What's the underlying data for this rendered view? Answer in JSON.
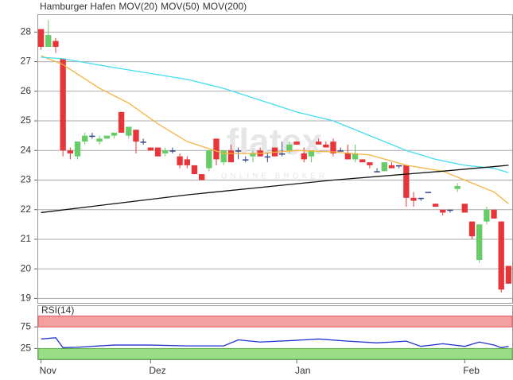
{
  "chart_data": [
    {
      "type": "candlestick",
      "title": "Hamburger Hafen",
      "title_color": "#e8353a",
      "watermark": "flatex",
      "watermark_sub": "ONLINE BROKER",
      "categories": [
        "Nov",
        null,
        null,
        null,
        null,
        null,
        null,
        null,
        null,
        null,
        null,
        null,
        null,
        null,
        null,
        "Dez",
        null,
        null,
        null,
        null,
        null,
        null,
        null,
        null,
        null,
        null,
        null,
        null,
        null,
        null,
        null,
        null,
        null,
        null,
        null,
        "Jan",
        null,
        null,
        null,
        null,
        null,
        null,
        null,
        null,
        null,
        null,
        null,
        null,
        null,
        null,
        null,
        null,
        null,
        null,
        null,
        null,
        null,
        null,
        "Feb",
        null,
        null,
        null,
        null,
        null,
        null
      ],
      "open": [
        28.1,
        27.5,
        27.7,
        27.1,
        24.0,
        23.8,
        24.3,
        24.5,
        24.3,
        24.4,
        24.5,
        25.3,
        24.5,
        24.7,
        24.3,
        24.1,
        24.1,
        23.9,
        24.0,
        23.8,
        23.7,
        23.5,
        23.2,
        23.4,
        24.4,
        23.6,
        24.0,
        24.0,
        23.7,
        23.8,
        24.0,
        23.8,
        24.1,
        23.9,
        24.0,
        24.3,
        23.9,
        23.8,
        24.3,
        24.2,
        24.3,
        24.0,
        23.9,
        23.7,
        23.7,
        23.6,
        23.3,
        23.3,
        23.5,
        23.5,
        23.5,
        22.4,
        22.4,
        22.6,
        22.2,
        22.0,
        22.0,
        22.7,
        22.2,
        21.6,
        20.3,
        21.6,
        22.0,
        21.6,
        20.1
      ],
      "high": [
        28.1,
        28.4,
        27.8,
        27.1,
        24.1,
        24.3,
        24.6,
        24.6,
        24.5,
        24.5,
        24.6,
        25.3,
        24.8,
        24.7,
        24.4,
        24.1,
        24.1,
        24.1,
        24.1,
        23.9,
        23.8,
        23.5,
        23.2,
        24.0,
        24.4,
        24.0,
        24.2,
        24.1,
        23.8,
        24.0,
        24.1,
        23.9,
        24.1,
        24.3,
        24.3,
        24.3,
        24.1,
        24.0,
        24.4,
        24.3,
        24.4,
        24.1,
        24.2,
        24.2,
        23.7,
        23.6,
        23.4,
        23.6,
        23.6,
        23.5,
        23.5,
        22.6,
        22.4,
        22.6,
        22.2,
        22.0,
        22.0,
        22.9,
        22.2,
        21.6,
        21.5,
        22.1,
        22.0,
        21.6,
        20.1
      ],
      "low": [
        27.4,
        27.5,
        27.3,
        23.8,
        23.7,
        23.7,
        24.2,
        24.4,
        24.2,
        24.4,
        24.4,
        24.6,
        24.4,
        23.9,
        24.2,
        24.0,
        23.8,
        23.8,
        23.9,
        23.4,
        23.4,
        23.2,
        23.0,
        23.3,
        23.5,
        23.5,
        23.6,
        23.7,
        23.6,
        23.6,
        23.8,
        23.6,
        23.8,
        23.8,
        23.9,
        24.2,
        23.6,
        23.6,
        24.2,
        24.1,
        23.8,
        24.0,
        23.7,
        23.6,
        23.6,
        23.4,
        23.3,
        23.3,
        23.4,
        23.4,
        22.1,
        22.1,
        22.3,
        22.6,
        22.1,
        21.8,
        21.9,
        22.6,
        21.9,
        21.0,
        20.2,
        21.5,
        21.7,
        19.2,
        19.5
      ],
      "close": [
        27.5,
        27.9,
        27.5,
        24.0,
        23.9,
        24.3,
        24.5,
        24.5,
        24.4,
        24.5,
        24.6,
        24.6,
        24.8,
        24.3,
        24.3,
        24.0,
        23.8,
        24.0,
        24.0,
        23.5,
        23.5,
        23.2,
        23.0,
        24.0,
        23.7,
        24.0,
        23.6,
        24.0,
        23.7,
        23.9,
        23.8,
        23.8,
        23.8,
        23.9,
        24.2,
        24.2,
        23.7,
        24.0,
        24.2,
        24.1,
        23.9,
        24.0,
        23.7,
        23.9,
        23.6,
        23.5,
        23.3,
        23.6,
        23.4,
        23.5,
        22.4,
        22.3,
        22.4,
        22.6,
        22.1,
        21.9,
        22.0,
        22.8,
        21.9,
        21.1,
        21.5,
        22.0,
        21.7,
        19.3,
        19.5
      ],
      "up_color": "#66cc66",
      "down_color": "#e8353a",
      "unchanged_color": "#334488",
      "series": [
        {
          "name": "MOV(20)",
          "color": "#f5b23d",
          "x": [
            0,
            3,
            8,
            12,
            16,
            20,
            25,
            30,
            35,
            40,
            45,
            50,
            55,
            58,
            62,
            64
          ],
          "values": [
            27.2,
            26.9,
            26.1,
            25.6,
            24.9,
            24.3,
            23.9,
            23.9,
            24.0,
            23.95,
            23.85,
            23.5,
            23.3,
            23.0,
            22.6,
            22.2
          ]
        },
        {
          "name": "MOV(50)",
          "color": "#44ddee",
          "x": [
            0,
            3,
            10,
            20,
            25,
            30,
            35,
            40,
            45,
            50,
            54,
            58,
            62,
            64
          ],
          "values": [
            27.15,
            27.1,
            26.8,
            26.4,
            26.1,
            25.7,
            25.3,
            25.0,
            24.5,
            24.0,
            23.7,
            23.5,
            23.4,
            23.25
          ]
        },
        {
          "name": "MOV(200)",
          "color": "#111111",
          "x": [
            0,
            20,
            40,
            55,
            64
          ],
          "values": [
            21.9,
            22.5,
            23.0,
            23.3,
            23.5
          ]
        }
      ],
      "ylim": [
        18.85,
        28.6
      ],
      "yticks": [
        19,
        20,
        21,
        22,
        23,
        24,
        25,
        26,
        27,
        28
      ],
      "grid": true
    },
    {
      "type": "line",
      "title": "RSI(14)",
      "title_color": "#2233cc",
      "bands": [
        {
          "from": 75,
          "to": 100,
          "color": "#f4a0a0",
          "edge": "#e05555"
        },
        {
          "from": 0,
          "to": 25,
          "color": "#99dd88",
          "edge": "#55aa44"
        }
      ],
      "series": [
        {
          "name": "RSI(14)",
          "color": "#2233cc",
          "x": [
            0,
            2,
            3,
            5,
            10,
            15,
            20,
            25,
            27,
            30,
            35,
            38,
            42,
            46,
            50,
            52,
            55,
            58,
            60,
            62,
            63,
            64
          ],
          "values": [
            47,
            50,
            27,
            28,
            33,
            33,
            31,
            31,
            45,
            40,
            44,
            47,
            42,
            38,
            42,
            30,
            36,
            30,
            40,
            33,
            27,
            30
          ]
        }
      ],
      "ylim": [
        0,
        125
      ],
      "yticks": [
        25,
        75
      ],
      "grid": true
    }
  ]
}
